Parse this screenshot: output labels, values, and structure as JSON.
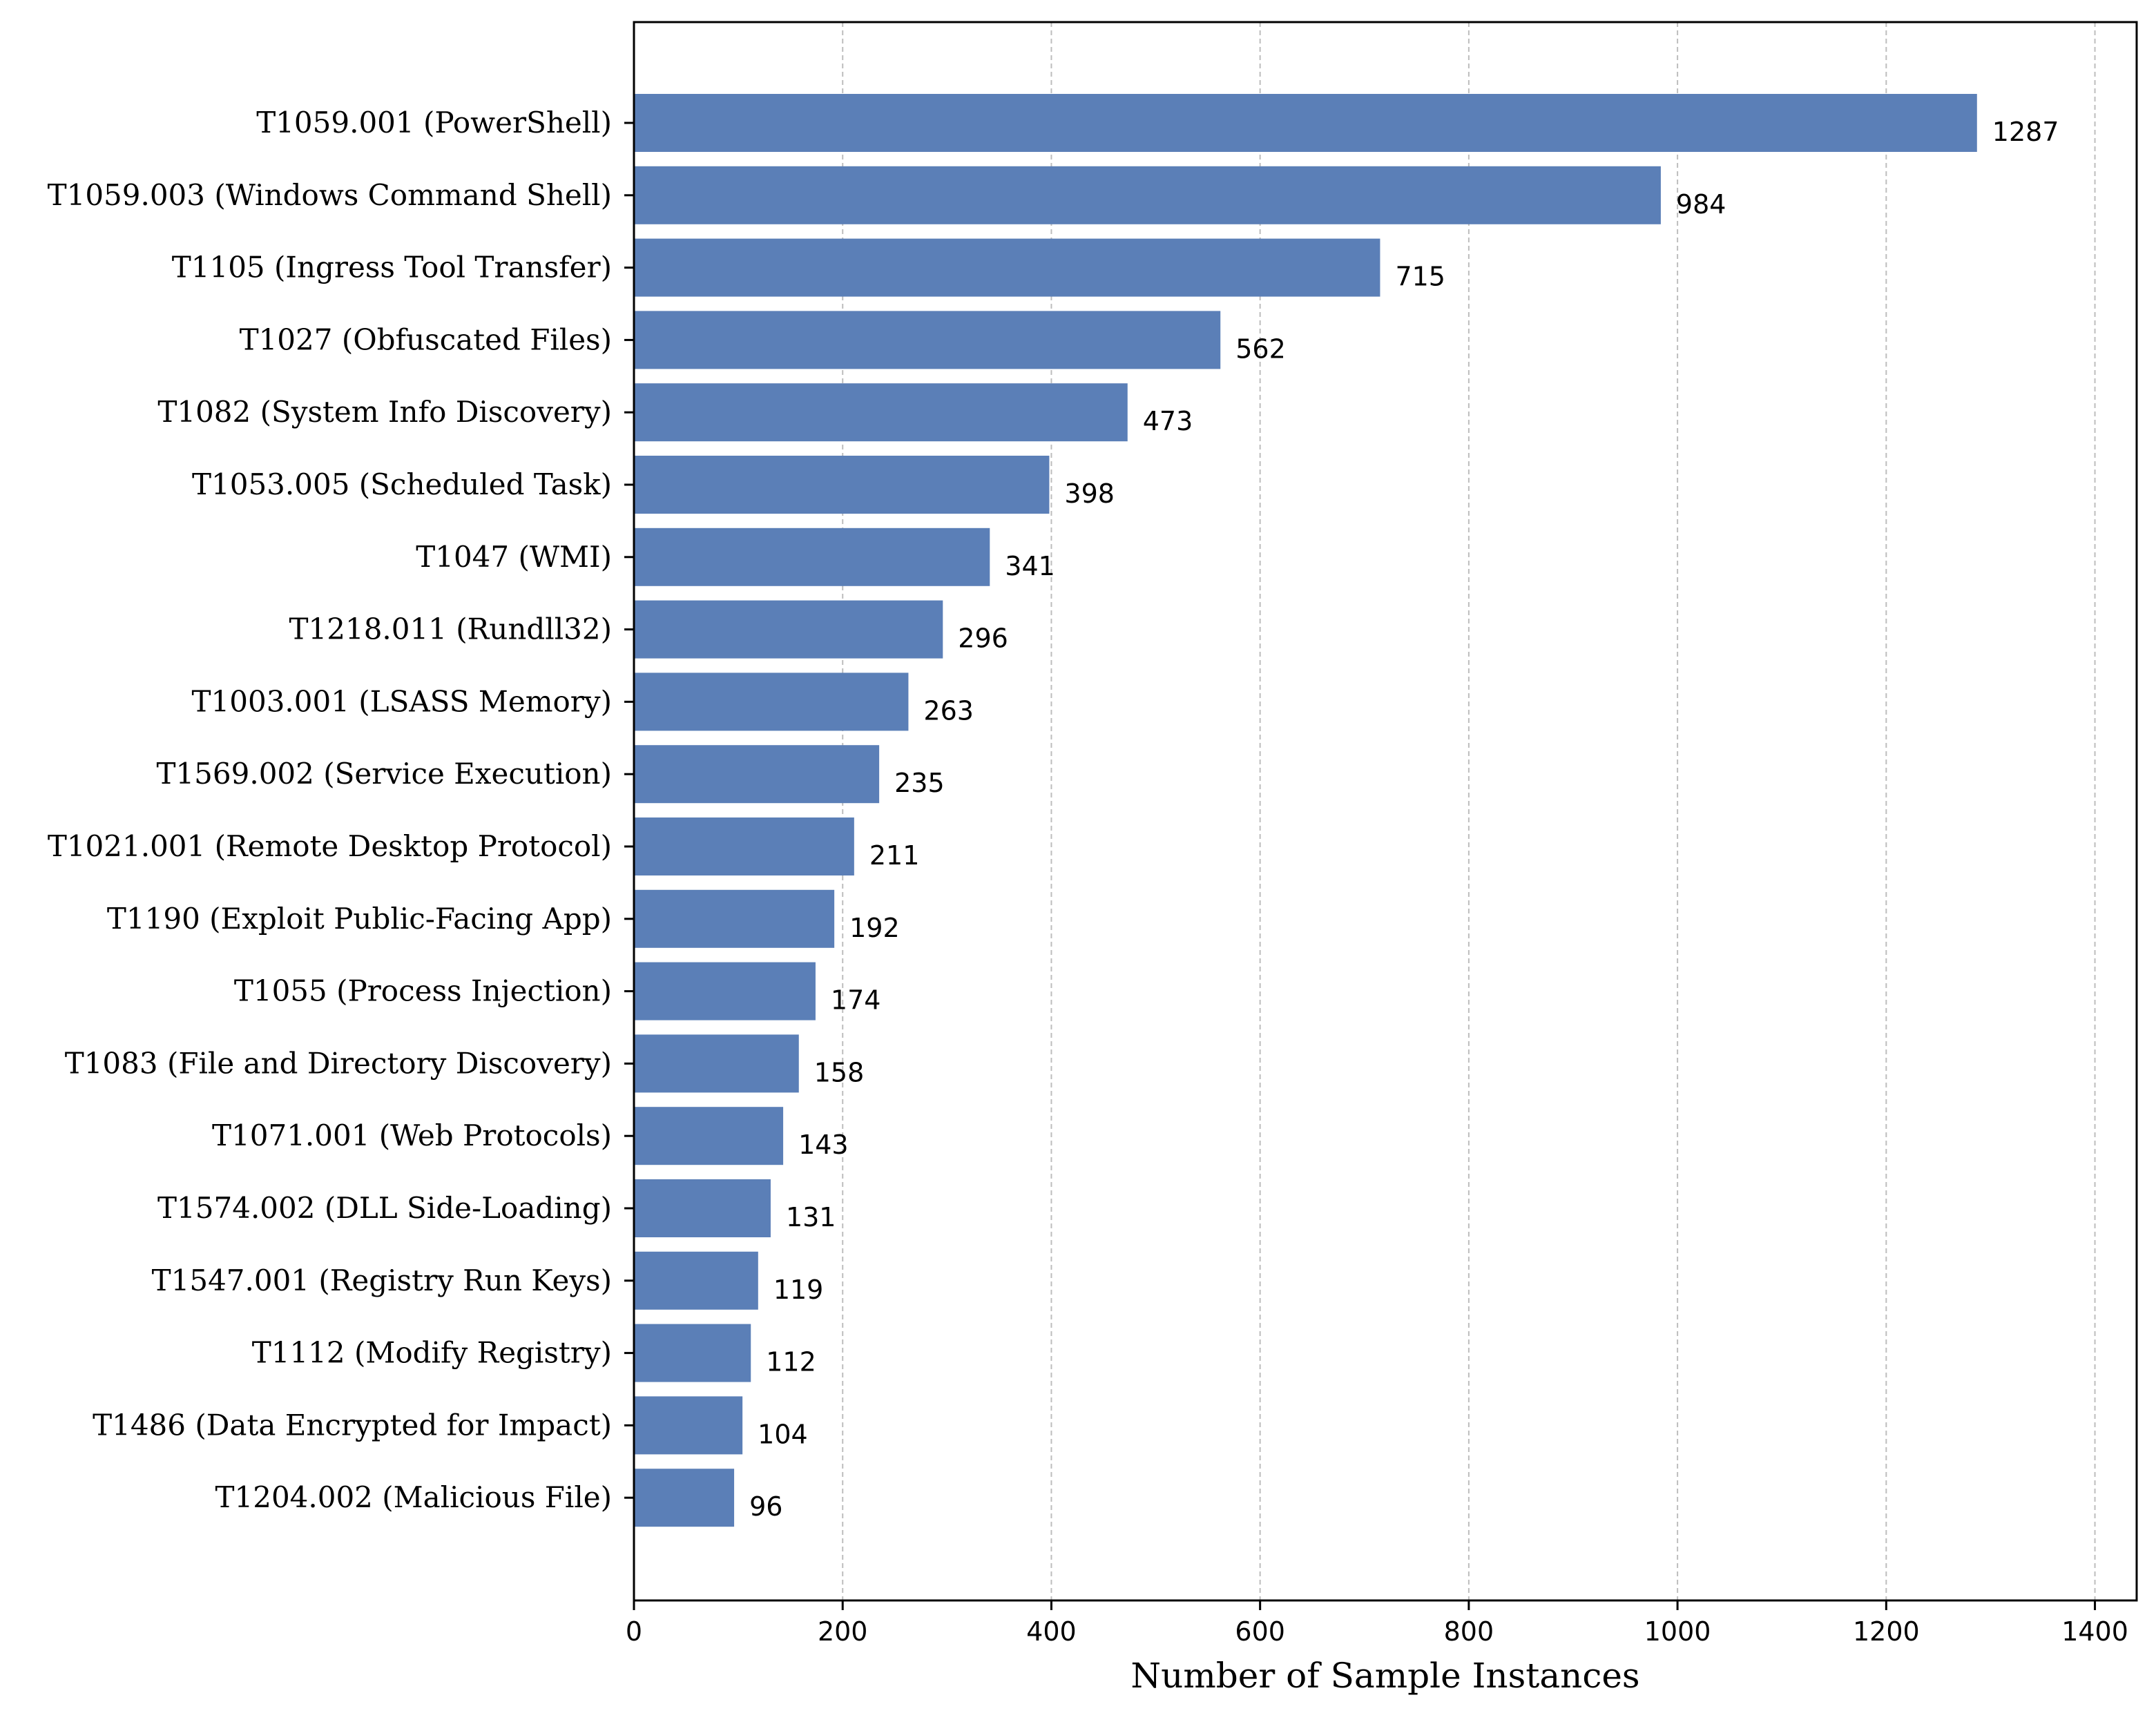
{
  "chart_data": {
    "type": "bar",
    "orientation": "horizontal",
    "title": "",
    "xlabel": "Number of Sample Instances",
    "ylabel": "",
    "xlim": [
      0,
      1440
    ],
    "xticks": [
      0,
      200,
      400,
      600,
      800,
      1000,
      1200,
      1400
    ],
    "grid": "x-dashed",
    "bar_color": "#5b7fb7",
    "categories": [
      "T1059.001 (PowerShell)",
      "T1059.003 (Windows Command Shell)",
      "T1105 (Ingress Tool Transfer)",
      "T1027 (Obfuscated Files)",
      "T1082 (System Info Discovery)",
      "T1053.005 (Scheduled Task)",
      "T1047 (WMI)",
      "T1218.011 (Rundll32)",
      "T1003.001 (LSASS Memory)",
      "T1569.002 (Service Execution)",
      "T1021.001 (Remote Desktop Protocol)",
      "T1190 (Exploit Public-Facing App)",
      "T1055 (Process Injection)",
      "T1083 (File and Directory Discovery)",
      "T1071.001 (Web Protocols)",
      "T1574.002 (DLL Side-Loading)",
      "T1547.001 (Registry Run Keys)",
      "T1112 (Modify Registry)",
      "T1486 (Data Encrypted for Impact)",
      "T1204.002 (Malicious File)"
    ],
    "values": [
      1287,
      984,
      715,
      562,
      473,
      398,
      341,
      296,
      263,
      235,
      211,
      192,
      174,
      158,
      143,
      131,
      119,
      112,
      104,
      96
    ]
  }
}
